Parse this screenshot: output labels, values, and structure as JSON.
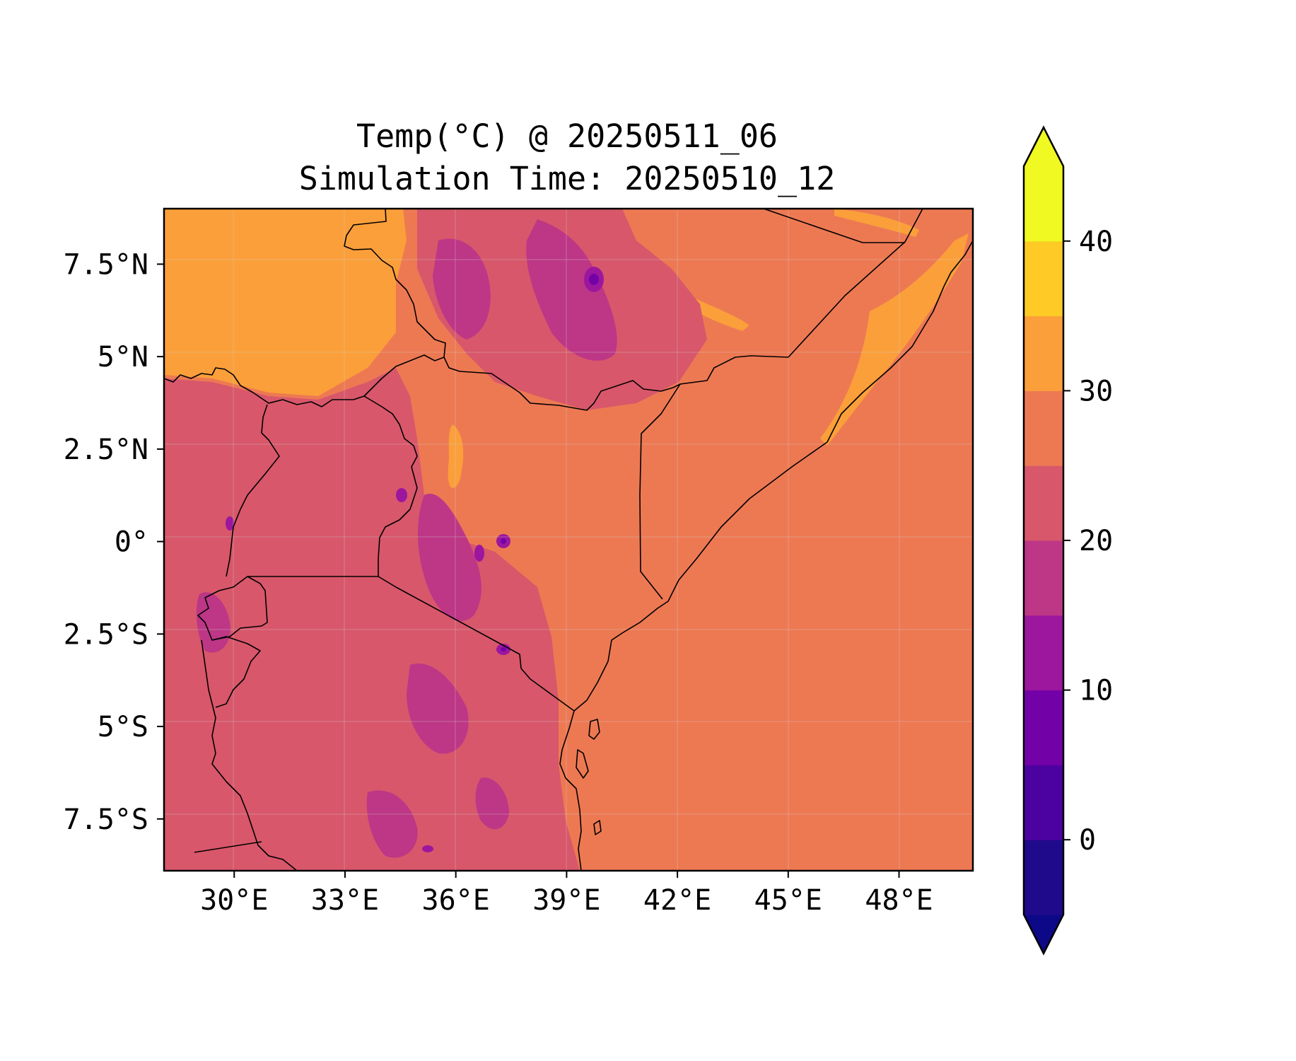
{
  "title": {
    "line1": "Temp(°C) @ 20250511_06",
    "line2": "Simulation Time: 20250510_12"
  },
  "map": {
    "x_ticks": [
      "30°E",
      "33°E",
      "36°E",
      "39°E",
      "42°E",
      "45°E",
      "48°E"
    ],
    "x_tick_values": [
      30,
      33,
      36,
      39,
      42,
      45,
      48
    ],
    "y_ticks": [
      "7.5°N",
      "5°N",
      "2.5°N",
      "0°",
      "2.5°S",
      "5°S",
      "7.5°S"
    ],
    "y_tick_values": [
      7.5,
      5,
      2.5,
      0,
      -2.5,
      -5,
      -7.5
    ],
    "lon_range": [
      28.1,
      50.0
    ],
    "lat_range": [
      -8.9,
      9.0
    ],
    "gridlines": true
  },
  "colorbar": {
    "tick_labels": [
      "0",
      "10",
      "20",
      "30",
      "40"
    ],
    "tick_values": [
      0,
      10,
      20,
      30,
      40
    ],
    "range": [
      -5,
      45
    ],
    "extend": "both",
    "levels": [
      -5,
      0,
      5,
      10,
      15,
      20,
      25,
      30,
      35,
      40,
      45
    ],
    "colors": [
      "#1f0a8c",
      "#4c02a1",
      "#7301a8",
      "#9c179e",
      "#bd3786",
      "#d8576b",
      "#ed7953",
      "#fb9f3a",
      "#fdca26",
      "#f0f921"
    ],
    "under_color": "#0d0887",
    "over_color": "#f0f921"
  }
}
